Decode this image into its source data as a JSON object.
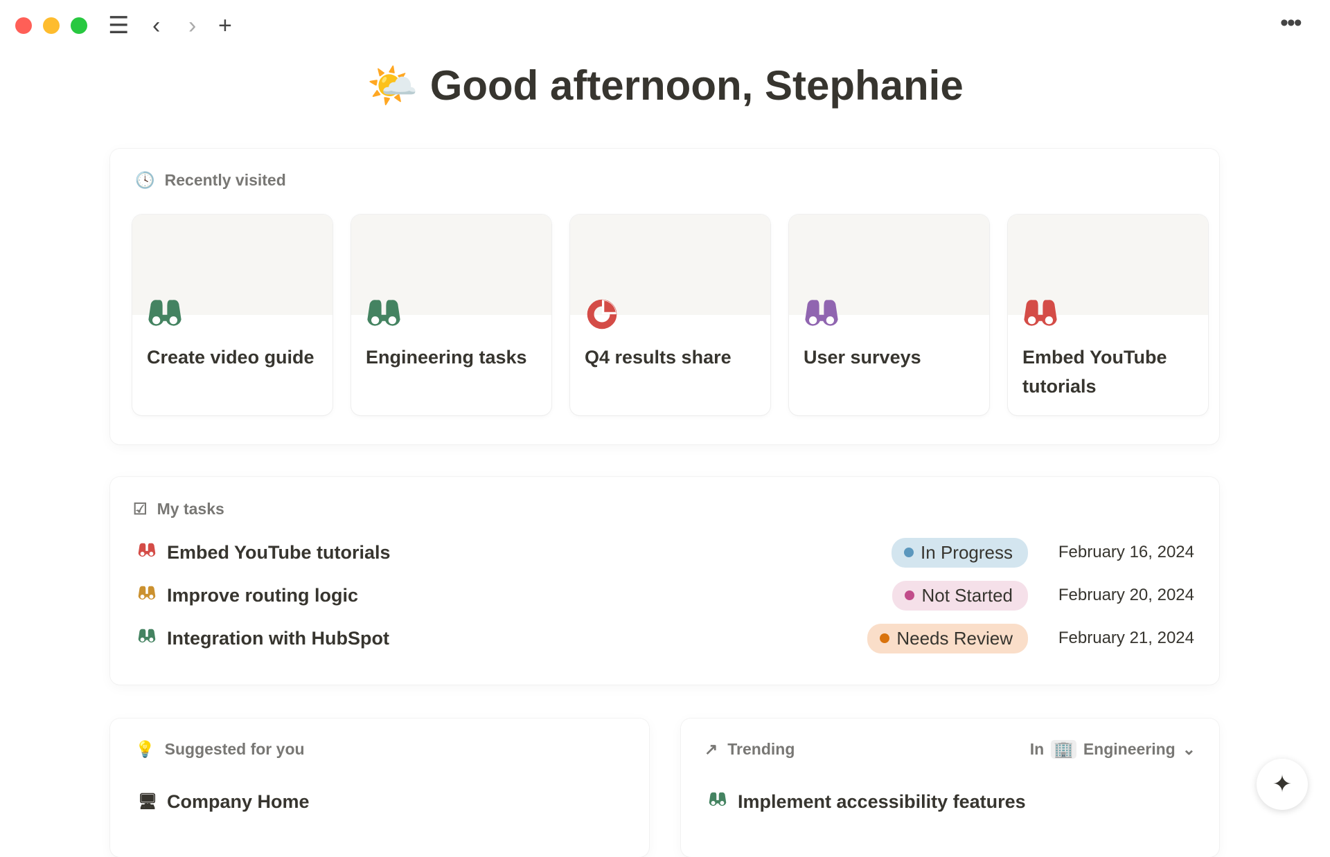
{
  "toolbar": {
    "menu_icon": "hamburger-icon",
    "back_icon": "chevron-left-icon",
    "forward_icon": "chevron-right-icon",
    "new_icon": "plus-icon",
    "more_icon": "ellipsis-icon"
  },
  "greeting": {
    "emoji": "🌤️",
    "text": "Good afternoon, Stephanie"
  },
  "recent": {
    "title": "Recently visited",
    "items": [
      {
        "title": "Create video guide",
        "icon": "binoculars-icon",
        "color": "#448361"
      },
      {
        "title": "Engineering tasks",
        "icon": "binoculars-icon",
        "color": "#448361"
      },
      {
        "title": "Q4 results share",
        "icon": "pie-chart-icon",
        "color": "#d44c47"
      },
      {
        "title": "User surveys",
        "icon": "binoculars-icon",
        "color": "#9065b0"
      },
      {
        "title": "Embed YouTube tutorials",
        "icon": "binoculars-icon",
        "color": "#d44c47"
      }
    ]
  },
  "tasks": {
    "title": "My tasks",
    "items": [
      {
        "name": "Embed YouTube tutorials",
        "icon_color": "#d44c47",
        "status": "In Progress",
        "status_bg": "#d3e5ef",
        "dot": "#5b97bd",
        "date": "February 16, 2024"
      },
      {
        "name": "Improve routing logic",
        "icon_color": "#cb912f",
        "status": "Not Started",
        "status_bg": "#f5e0e9",
        "dot": "#c14c8a",
        "date": "February 20, 2024"
      },
      {
        "name": "Integration with HubSpot",
        "icon_color": "#448361",
        "status": "Needs Review",
        "status_bg": "#fadec9",
        "dot": "#d9730d",
        "date": "February 21, 2024"
      }
    ]
  },
  "suggested": {
    "title": "Suggested for you",
    "items": [
      {
        "name": "Company Home",
        "icon": "desk-icon"
      }
    ]
  },
  "trending": {
    "title": "Trending",
    "filter_prefix": "In",
    "filter_value": "Engineering",
    "items": [
      {
        "name": "Implement accessibility features",
        "icon_color": "#448361"
      }
    ]
  },
  "ai_button": {
    "icon": "sparkle-icon"
  }
}
